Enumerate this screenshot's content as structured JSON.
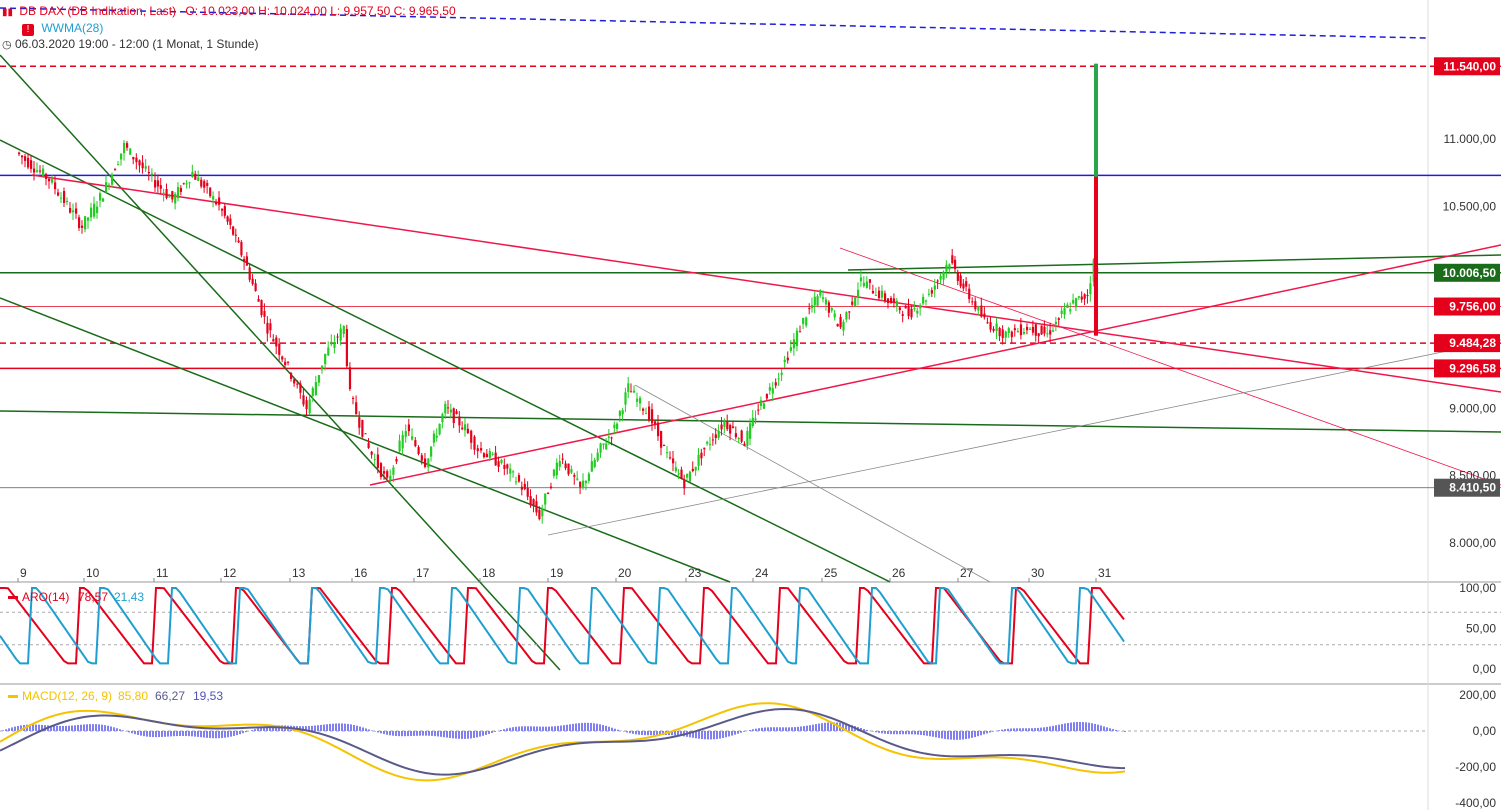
{
  "header": {
    "title": "DB DAX (DB Indikation, Last)",
    "ohlc": "O: 10.023,00  H: 10.024,00  L: 9.957,50  C: 9.965,50",
    "indicator": "WWMA(28)",
    "period": "06.03.2020 19:00 - 12:00  (1 Monat, 1 Stunde)"
  },
  "colors": {
    "up": "#22cc22",
    "down": "#e5001c",
    "trendGreen": "#1a6b1a",
    "trendRed": "#f0164a",
    "blue": "#1f1fd8",
    "aroUp": "#e5001c",
    "aroDown": "#1f9fd0",
    "macd": "#f5c400",
    "signal": "#5a5a8a",
    "hist": "#8080f0"
  },
  "chart_data": [
    {
      "type": "candlestick",
      "title": "DB DAX (DB Indikation, Last)",
      "x_ticks": [
        "9",
        "10",
        "11",
        "12",
        "13",
        "16",
        "17",
        "18",
        "19",
        "20",
        "23",
        "24",
        "25",
        "26",
        "27",
        "30",
        "31"
      ],
      "y_ticks": [
        "11.000,00",
        "10.500,00",
        "9.000,00",
        "8.500,00",
        "8.000,00"
      ],
      "ylim": [
        7850,
        11600
      ],
      "price_labels": [
        {
          "text": "11.540,00",
          "value": 11540,
          "color": "#e5001c"
        },
        {
          "text": "10.006,50",
          "value": 10006.5,
          "color": "#1a6b1a"
        },
        {
          "text": "9.756,00",
          "value": 9756,
          "color": "#e5001c"
        },
        {
          "text": "9.484,28",
          "value": 9484.28,
          "color": "#e5001c"
        },
        {
          "text": "9.296,58",
          "value": 9296.58,
          "color": "#e5001c"
        },
        {
          "text": "8.410,50",
          "value": 8410.5,
          "color": "#555555"
        }
      ],
      "close_path": [
        [
          0,
          10900
        ],
        [
          0.5,
          10700
        ],
        [
          1,
          10350
        ],
        [
          1.3,
          10600
        ],
        [
          1.6,
          10950
        ],
        [
          2,
          10700
        ],
        [
          2.3,
          10550
        ],
        [
          2.6,
          10750
        ],
        [
          3,
          10500
        ],
        [
          3.2,
          10300
        ],
        [
          3.4,
          10050
        ],
        [
          3.7,
          9600
        ],
        [
          4,
          9300
        ],
        [
          4.3,
          9000
        ],
        [
          4.6,
          9400
        ],
        [
          4.9,
          9600
        ],
        [
          5,
          9100
        ],
        [
          5.3,
          8700
        ],
        [
          5.6,
          8450
        ],
        [
          5.9,
          8850
        ],
        [
          6.2,
          8600
        ],
        [
          6.5,
          9000
        ],
        [
          6.8,
          8850
        ],
        [
          7,
          8700
        ],
        [
          7.3,
          8600
        ],
        [
          7.6,
          8450
        ],
        [
          7.9,
          8200
        ],
        [
          8.2,
          8650
        ],
        [
          8.5,
          8400
        ],
        [
          8.8,
          8700
        ],
        [
          9,
          8850
        ],
        [
          9.2,
          9150
        ],
        [
          9.5,
          8950
        ],
        [
          9.8,
          8600
        ],
        [
          10,
          8450
        ],
        [
          10.3,
          8700
        ],
        [
          10.6,
          8900
        ],
        [
          10.9,
          8750
        ],
        [
          11.1,
          9000
        ],
        [
          11.4,
          9250
        ],
        [
          11.8,
          9700
        ],
        [
          12,
          9850
        ],
        [
          12.3,
          9600
        ],
        [
          12.6,
          9950
        ],
        [
          13,
          9800
        ],
        [
          13.3,
          9700
        ],
        [
          13.6,
          9850
        ],
        [
          13.9,
          10100
        ],
        [
          14.1,
          9900
        ],
        [
          14.4,
          9650
        ],
        [
          14.7,
          9550
        ],
        [
          15,
          9600
        ],
        [
          15.3,
          9550
        ],
        [
          15.6,
          9750
        ],
        [
          15.9,
          9850
        ],
        [
          16.1,
          10080
        ],
        [
          16.2,
          10000
        ]
      ],
      "projection_green": [
        [
          16.6,
          9540
        ],
        [
          18.2,
          10720
        ],
        [
          18.6,
          9970
        ],
        [
          20.2,
          11560
        ]
      ],
      "projection_red": [
        [
          16.25,
          10060
        ],
        [
          16.6,
          9540
        ],
        [
          18.2,
          10720
        ],
        [
          18.6,
          9970
        ]
      ]
    },
    {
      "type": "line",
      "title": "ARO(14)",
      "series": [
        {
          "name": "78,57",
          "color": "#e5001c"
        },
        {
          "name": "21,43",
          "color": "#1f9fd0"
        }
      ],
      "y_ticks": [
        "100,00",
        "50,00",
        "0,00"
      ],
      "ylim": [
        -10,
        110
      ]
    },
    {
      "type": "bar",
      "title": "MACD(12, 26, 9)",
      "series": [
        {
          "name": "85,80",
          "color": "#f5c400"
        },
        {
          "name": "66,27",
          "color": "#5a5a8a"
        },
        {
          "name": "19,53",
          "color": "#8080f0"
        }
      ],
      "y_ticks": [
        "200,00",
        "0,00",
        "-200,00",
        "-400,00"
      ],
      "ylim": [
        -420,
        240
      ]
    }
  ]
}
